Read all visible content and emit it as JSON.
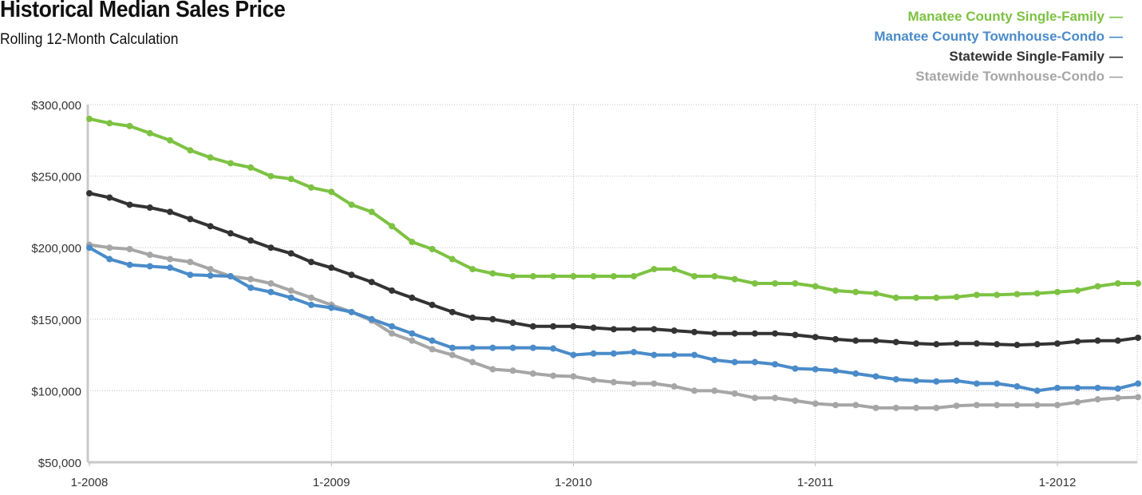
{
  "chart_data": {
    "type": "line",
    "title": "Historical Median Sales Price",
    "subtitle": "Rolling 12-Month Calculation",
    "ylim": [
      50000,
      300000
    ],
    "y_ticks": [
      {
        "value": 50000,
        "label": "$50,000"
      },
      {
        "value": 100000,
        "label": "$100,000"
      },
      {
        "value": 150000,
        "label": "$150,000"
      },
      {
        "value": 200000,
        "label": "$200,000"
      },
      {
        "value": 250000,
        "label": "$250,000"
      },
      {
        "value": 300000,
        "label": "$300,000"
      }
    ],
    "x_ticks": [
      {
        "index": 0,
        "label": "1-2008"
      },
      {
        "index": 12,
        "label": "1-2009"
      },
      {
        "index": 24,
        "label": "1-2010"
      },
      {
        "index": 36,
        "label": "1-2011"
      },
      {
        "index": 48,
        "label": "1-2012"
      }
    ],
    "x_range": [
      "1-2008",
      "4-2012"
    ],
    "grid": true,
    "legend_position": "top-right",
    "series": [
      {
        "name": "Manatee County Single-Family",
        "color": "#7dc242",
        "values": [
          290000,
          287000,
          285000,
          280000,
          275000,
          268000,
          263000,
          259000,
          256000,
          250000,
          248000,
          242000,
          239000,
          230000,
          225000,
          215000,
          204000,
          199000,
          192000,
          185000,
          182000,
          180000,
          180000,
          180000,
          180000,
          180000,
          180000,
          180000,
          185000,
          185000,
          180000,
          180000,
          178000,
          175000,
          175000,
          175000,
          173000,
          170000,
          169000,
          168000,
          165000,
          165000,
          165000,
          165500,
          167000,
          167000,
          167500,
          168000,
          169000,
          170000,
          173000,
          175000,
          175000
        ]
      },
      {
        "name": "Manatee County Townhouse-Condo",
        "color": "#4a8bc9",
        "values": [
          200000,
          192000,
          188000,
          187000,
          186000,
          181000,
          180500,
          180000,
          172000,
          169000,
          165000,
          160000,
          158000,
          155000,
          150000,
          145000,
          140000,
          135000,
          130000,
          130000,
          130000,
          130000,
          130000,
          129500,
          125000,
          126000,
          126000,
          127000,
          125000,
          125000,
          125000,
          121500,
          120000,
          120000,
          118500,
          115500,
          115000,
          114000,
          112000,
          110000,
          108000,
          107000,
          106500,
          107000,
          105000,
          105000,
          103000,
          100000,
          102000,
          102000,
          102000,
          101500,
          105000
        ]
      },
      {
        "name": "Statewide Single-Family",
        "color": "#333333",
        "values": [
          238000,
          235000,
          230000,
          228000,
          225000,
          220000,
          215000,
          210000,
          205000,
          200000,
          196000,
          190000,
          186000,
          181000,
          176000,
          170000,
          165000,
          160000,
          155000,
          151000,
          150000,
          147500,
          145000,
          145000,
          145000,
          144000,
          143000,
          143000,
          143000,
          142000,
          141000,
          140000,
          140000,
          140000,
          140000,
          139000,
          137500,
          136000,
          135000,
          135000,
          134000,
          133000,
          132500,
          133000,
          133000,
          132500,
          132000,
          132500,
          133000,
          134500,
          135000,
          135000,
          137000
        ]
      },
      {
        "name": "Statewide Townhouse-Condo",
        "color": "#a6a6a6",
        "values": [
          202000,
          200000,
          199000,
          195000,
          192000,
          190000,
          185000,
          180000,
          178000,
          175000,
          170000,
          165000,
          160000,
          155000,
          149000,
          140000,
          135000,
          129000,
          125000,
          120000,
          115000,
          114000,
          112000,
          110500,
          110000,
          107500,
          106000,
          105000,
          105000,
          103000,
          100000,
          100000,
          98000,
          95000,
          95000,
          93000,
          91000,
          90000,
          90000,
          88000,
          88000,
          88000,
          88000,
          89500,
          90000,
          90000,
          90000,
          90000,
          90000,
          92000,
          94000,
          95000,
          95500
        ]
      }
    ]
  }
}
